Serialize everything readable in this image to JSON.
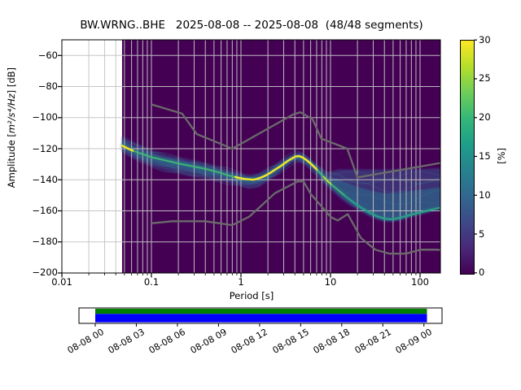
{
  "header": {
    "title": "BW.WRNG..BHE   2025-08-08 -- 2025-08-08  (48/48 segments)",
    "station_id": "BW.WRNG..BHE",
    "date_range": "2025-08-08 -- 2025-08-08",
    "segments": "48/48 segments"
  },
  "axes": {
    "x": {
      "label": "Period [s]",
      "scale": "log",
      "range": [
        0.01,
        169
      ],
      "ticks": [
        {
          "label": "0.01",
          "value": 0.01
        },
        {
          "label": "0.1",
          "value": 0.1
        },
        {
          "label": "1",
          "value": 1
        },
        {
          "label": "10",
          "value": 10
        },
        {
          "label": "100",
          "value": 100
        }
      ],
      "minor_ticks": [
        0.02,
        0.03,
        0.04,
        0.05,
        0.06,
        0.07,
        0.08,
        0.09,
        0.2,
        0.3,
        0.4,
        0.5,
        0.6,
        0.7,
        0.8,
        0.9,
        2,
        3,
        4,
        5,
        6,
        7,
        8,
        9,
        20,
        30,
        40,
        50,
        60,
        70,
        80,
        90
      ]
    },
    "y": {
      "label_prefix": "Amplitude [",
      "label_math": "m²/s⁴/Hz",
      "label_suffix": "] [dB]",
      "range": [
        -200,
        -50
      ],
      "ticks": [
        {
          "label": "−60",
          "value": -60
        },
        {
          "label": "−80",
          "value": -80
        },
        {
          "label": "−100",
          "value": -100
        },
        {
          "label": "−120",
          "value": -120
        },
        {
          "label": "−140",
          "value": -140
        },
        {
          "label": "−160",
          "value": -160
        },
        {
          "label": "−180",
          "value": -180
        },
        {
          "label": "−200",
          "value": -200
        }
      ]
    }
  },
  "colorbar": {
    "label": "[%]",
    "range": [
      0,
      30
    ],
    "ticks": [
      {
        "label": "0",
        "value": 0
      },
      {
        "label": "5",
        "value": 5
      },
      {
        "label": "10",
        "value": 10
      },
      {
        "label": "15",
        "value": 15
      },
      {
        "label": "20",
        "value": 20
      },
      {
        "label": "25",
        "value": 25
      },
      {
        "label": "30",
        "value": 30
      }
    ],
    "gradient": [
      "#440154",
      "#482878",
      "#3e4989",
      "#31688e",
      "#26828e",
      "#1f9e89",
      "#35b779",
      "#6ece58",
      "#b5de2b",
      "#fde725"
    ]
  },
  "chart_data": {
    "type": "heatmap",
    "title": "BW.WRNG..BHE   2025-08-08 -- 2025-08-08  (48/48 segments)",
    "xlabel": "Period [s]",
    "ylabel": "Amplitude [m²/s⁴/Hz] [dB]",
    "colorbar_label": "[%]",
    "xlim": [
      0.01,
      169
    ],
    "ylim": [
      -200,
      -50
    ],
    "clim": [
      0,
      30
    ],
    "x_scale": "log",
    "grid": true,
    "background_color": "#440154",
    "histogram_period_range": [
      0.047,
      169
    ],
    "mode_curve": [
      [
        0.047,
        -118
      ],
      [
        0.06,
        -121
      ],
      [
        0.08,
        -123.5
      ],
      [
        0.1,
        -125.5
      ],
      [
        0.13,
        -127
      ],
      [
        0.17,
        -128.5
      ],
      [
        0.22,
        -130
      ],
      [
        0.3,
        -131.5
      ],
      [
        0.4,
        -133
      ],
      [
        0.55,
        -135
      ],
      [
        0.7,
        -137
      ],
      [
        0.9,
        -138.5
      ],
      [
        1.1,
        -139.5
      ],
      [
        1.4,
        -140
      ],
      [
        1.7,
        -138.5
      ],
      [
        2.0,
        -136.5
      ],
      [
        2.4,
        -133.5
      ],
      [
        2.9,
        -130.5
      ],
      [
        3.4,
        -127.5
      ],
      [
        3.8,
        -126
      ],
      [
        4.2,
        -124.5
      ],
      [
        4.7,
        -125
      ],
      [
        5.3,
        -127
      ],
      [
        6.0,
        -129.5
      ],
      [
        6.8,
        -132.5
      ],
      [
        7.6,
        -135.5
      ],
      [
        8.5,
        -138.5
      ],
      [
        9.5,
        -141.5
      ],
      [
        11,
        -144.5
      ],
      [
        13,
        -148
      ],
      [
        15,
        -151
      ],
      [
        18,
        -154.5
      ],
      [
        22,
        -158
      ],
      [
        27,
        -161
      ],
      [
        33,
        -163.5
      ],
      [
        40,
        -165
      ],
      [
        50,
        -165.5
      ],
      [
        65,
        -164
      ],
      [
        85,
        -162
      ],
      [
        110,
        -160.5
      ],
      [
        140,
        -159
      ],
      [
        169,
        -158
      ]
    ],
    "band_upper": [
      [
        0.047,
        -112
      ],
      [
        0.07,
        -117
      ],
      [
        0.1,
        -121
      ],
      [
        0.15,
        -124
      ],
      [
        0.22,
        -126
      ],
      [
        0.32,
        -128
      ],
      [
        0.45,
        -130
      ],
      [
        0.65,
        -132.5
      ],
      [
        0.9,
        -135
      ],
      [
        1.2,
        -137
      ],
      [
        1.6,
        -136
      ],
      [
        2.0,
        -133
      ],
      [
        2.5,
        -129.5
      ],
      [
        3.0,
        -126.5
      ],
      [
        3.6,
        -124
      ],
      [
        4.2,
        -122.5
      ],
      [
        5.0,
        -123.5
      ],
      [
        6.0,
        -126.5
      ],
      [
        7.0,
        -130
      ],
      [
        8.0,
        -133
      ],
      [
        9.0,
        -135.5
      ],
      [
        10.5,
        -134.5
      ],
      [
        12,
        -133.5
      ],
      [
        15,
        -133.5
      ],
      [
        20,
        -133.5
      ],
      [
        30,
        -133.5
      ],
      [
        45,
        -133.5
      ],
      [
        70,
        -133
      ],
      [
        110,
        -133
      ],
      [
        169,
        -132.5
      ]
    ],
    "band_lower": [
      [
        0.047,
        -122
      ],
      [
        0.07,
        -128
      ],
      [
        0.1,
        -131.5
      ],
      [
        0.15,
        -134.5
      ],
      [
        0.22,
        -136.5
      ],
      [
        0.32,
        -138.5
      ],
      [
        0.45,
        -140
      ],
      [
        0.65,
        -141.5
      ],
      [
        0.9,
        -143.5
      ],
      [
        1.2,
        -145.5
      ],
      [
        1.6,
        -144.5
      ],
      [
        2.0,
        -141
      ],
      [
        2.5,
        -137
      ],
      [
        3.0,
        -133
      ],
      [
        3.6,
        -129.5
      ],
      [
        4.2,
        -128
      ],
      [
        5.0,
        -129.5
      ],
      [
        6.0,
        -133
      ],
      [
        7.0,
        -137
      ],
      [
        8.0,
        -141
      ],
      [
        9.0,
        -144
      ],
      [
        10.5,
        -147.5
      ],
      [
        12,
        -150.5
      ],
      [
        14,
        -153.5
      ],
      [
        17,
        -157
      ],
      [
        21,
        -160
      ],
      [
        26,
        -163
      ],
      [
        32,
        -165.5
      ],
      [
        40,
        -167
      ],
      [
        50,
        -167
      ],
      [
        62,
        -166
      ],
      [
        80,
        -164
      ],
      [
        100,
        -162.5
      ],
      [
        130,
        -160.5
      ],
      [
        169,
        -158.5
      ]
    ],
    "noise_models": {
      "color": "#6b6b6b",
      "nhnm": [
        [
          0.1,
          -91.5
        ],
        [
          0.22,
          -97.4
        ],
        [
          0.32,
          -110.5
        ],
        [
          0.8,
          -120
        ],
        [
          3.8,
          -98
        ],
        [
          4.6,
          -96.5
        ],
        [
          6.3,
          -101
        ],
        [
          7.9,
          -113.5
        ],
        [
          15.4,
          -120
        ],
        [
          20,
          -138.5
        ],
        [
          169,
          -129.2
        ]
      ],
      "nlnm": [
        [
          0.1,
          -168
        ],
        [
          0.17,
          -166.7
        ],
        [
          0.4,
          -166.7
        ],
        [
          0.8,
          -169.2
        ],
        [
          1.24,
          -163.7
        ],
        [
          2.4,
          -148.6
        ],
        [
          4.3,
          -141.1
        ],
        [
          5,
          -141.1
        ],
        [
          6,
          -149
        ],
        [
          10,
          -163.8
        ],
        [
          12,
          -166.2
        ],
        [
          15.6,
          -162.1
        ],
        [
          21.9,
          -177.5
        ],
        [
          31.6,
          -185
        ],
        [
          45,
          -187.5
        ],
        [
          70,
          -187.5
        ],
        [
          101,
          -185
        ],
        [
          154,
          -185
        ],
        [
          169,
          -185.2
        ]
      ]
    }
  },
  "timeline": {
    "tick_labels": [
      "08-08 00",
      "08-08 03",
      "08-08 06",
      "08-08 09",
      "08-08 12",
      "08-08 15",
      "08-08 18",
      "08-08 21",
      "08-09 00"
    ],
    "bar_top_color": "#008000",
    "bar_bottom_color": "#0000ff"
  }
}
